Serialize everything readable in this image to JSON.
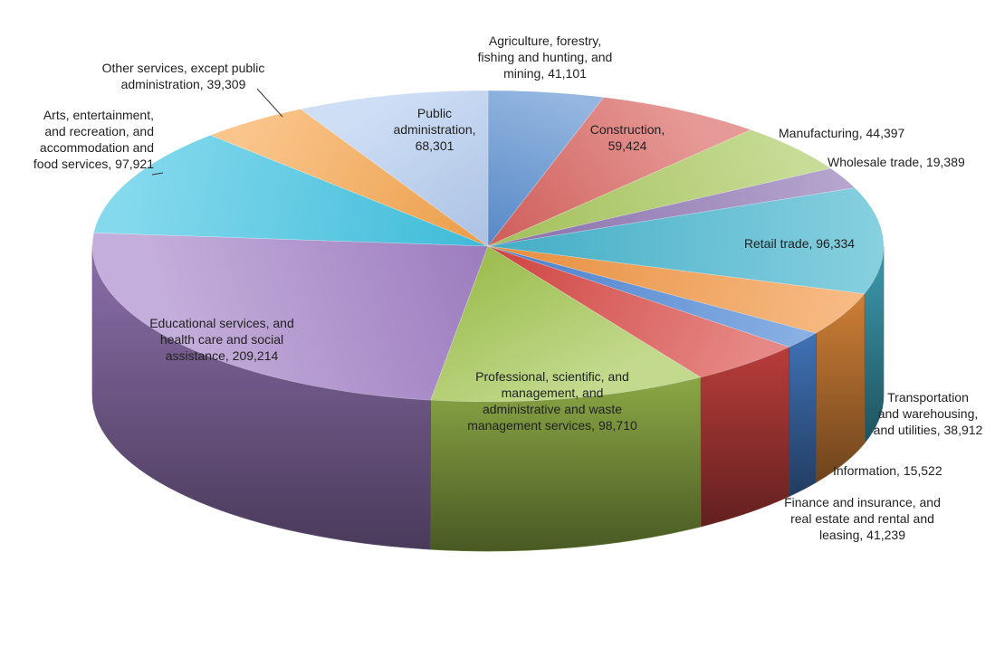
{
  "chart_data": {
    "type": "pie",
    "title": "",
    "slices": [
      {
        "label": "Agriculture, forestry,\nfishing and hunting, and\nmining, 41,101",
        "category": "Agriculture, forestry, fishing and hunting, and mining",
        "value": 41101,
        "color": "#5b8fd0"
      },
      {
        "label": "Construction,\n59,424",
        "category": "Construction",
        "value": 59424,
        "color": "#d9625e"
      },
      {
        "label": "Manufacturing, 44,397",
        "category": "Manufacturing",
        "value": 44397,
        "color": "#a9c95e"
      },
      {
        "label": "Wholesale trade, 19,389",
        "category": "Wholesale trade",
        "value": 19389,
        "color": "#8f75b4"
      },
      {
        "label": "Retail trade, 96,334",
        "category": "Retail trade",
        "value": 96334,
        "color": "#47b6cf"
      },
      {
        "label": "Transportation\nand warehousing,\nand utilities, 38,912",
        "category": "Transportation and warehousing, and utilities",
        "value": 38912,
        "color": "#f29540"
      },
      {
        "label": "Information, 15,522",
        "category": "Information",
        "value": 15522,
        "color": "#4b86d6"
      },
      {
        "label": "Finance and insurance, and\nreal estate and rental and\nleasing, 41,239",
        "category": "Finance and insurance, and real estate and rental and leasing",
        "value": 41239,
        "color": "#d94844"
      },
      {
        "label": "Professional, scientific, and\nmanagement, and\nadministrative and waste\nmanagement services, 98,710",
        "category": "Professional, scientific, and management, and administrative and waste management services",
        "value": 98710,
        "color": "#a3c651"
      },
      {
        "label": "Educational services, and\nhealth care and social\nassistance, 209,214",
        "category": "Educational services, and health care and social assistance",
        "value": 209214,
        "color": "#a482c8"
      },
      {
        "label": "Arts, entertainment,\nand recreation, and\naccommodation and\nfood services, 97,921",
        "category": "Arts, entertainment, and recreation, and accommodation and food services",
        "value": 97921,
        "color": "#41c5e3"
      },
      {
        "label": "Other services, except public\nadministration, 39,309",
        "category": "Other services, except public administration",
        "value": 39309,
        "color": "#f7a54c"
      },
      {
        "label": "Public\nadministration,\n68,301",
        "category": "Public administration",
        "value": 68301,
        "color": "#b4ccf0"
      }
    ],
    "style": "3d-pie",
    "legend": "none",
    "labels": "data-labels-category-and-value"
  }
}
